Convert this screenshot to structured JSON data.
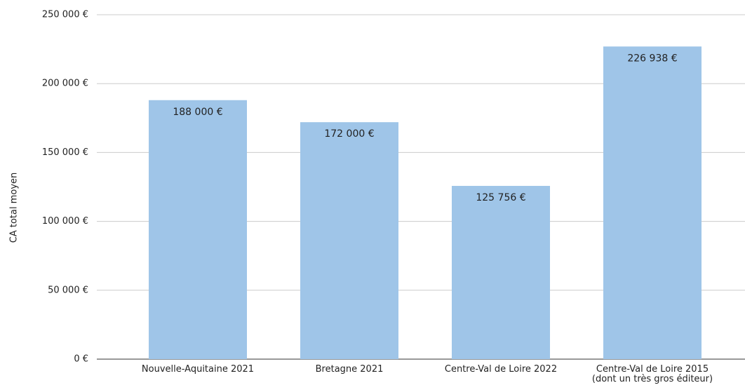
{
  "chart_data": {
    "type": "bar",
    "y_axis_label": "CA total moyen",
    "categories": [
      "Nouvelle-Aquitaine 2021",
      "Bretagne 2021",
      "Centre-Val de Loire 2022",
      "Centre-Val de Loire 2015 (dont un très gros éditeur)"
    ],
    "values": [
      188000,
      172000,
      125756,
      226938
    ],
    "value_labels": [
      "188 000 €",
      "172 000 €",
      "125 756 €",
      "226 938 €"
    ],
    "color": "#9fc5e8",
    "ylim": [
      0,
      250000
    ],
    "yticks": [
      {
        "value": 0,
        "label": "0 €"
      },
      {
        "value": 50000,
        "label": "50 000 €"
      },
      {
        "value": 100000,
        "label": "100 000 €"
      },
      {
        "value": 150000,
        "label": "150 000 €"
      },
      {
        "value": 200000,
        "label": "200 000 €"
      },
      {
        "value": 250000,
        "label": "250 000 €"
      }
    ],
    "grid": true
  }
}
